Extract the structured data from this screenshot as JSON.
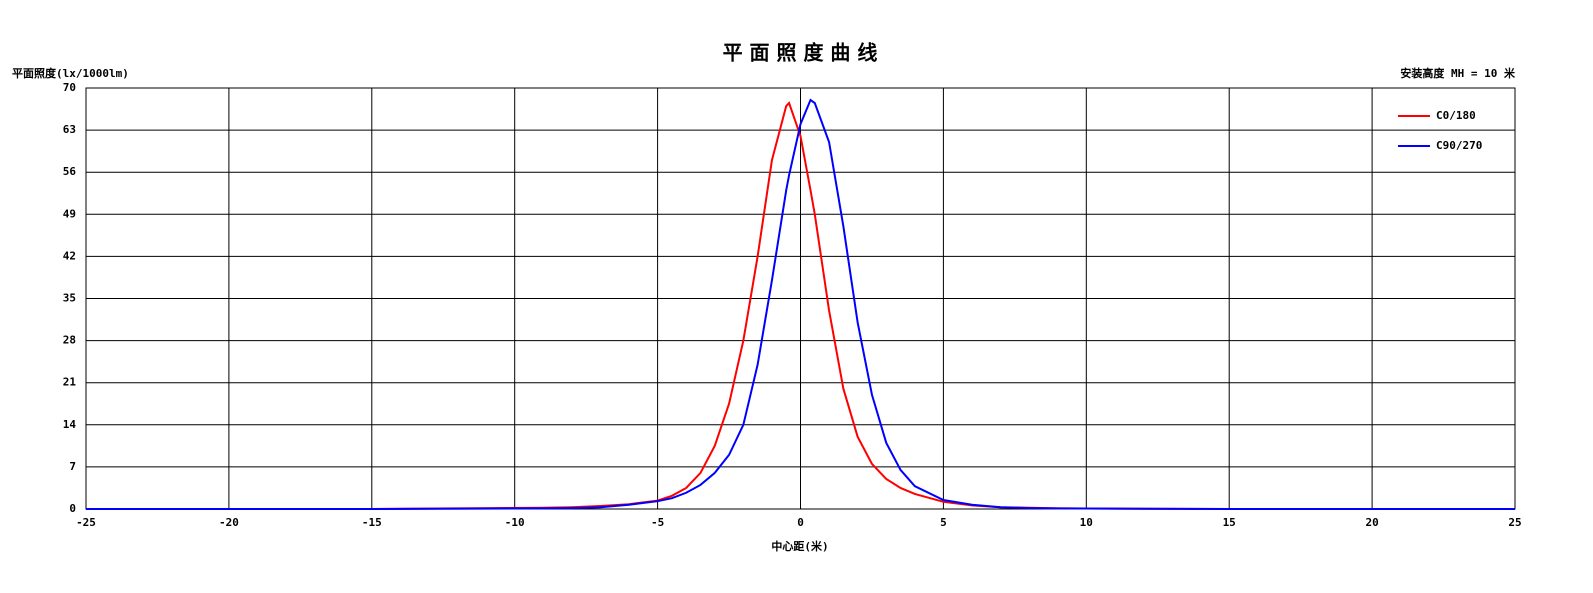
{
  "chart_data": {
    "type": "line",
    "title": "平 面 照 度 曲 线",
    "y_label": "平面照度(lx/1000lm)",
    "annotation": "安装高度 MH = 10 米",
    "x_label": "中心距(米)",
    "x": [
      -25,
      -15,
      -9,
      -8,
      -7,
      -6,
      -5,
      -4.5,
      -4,
      -3.5,
      -3,
      -2.5,
      -2,
      -1.5,
      -1,
      -0.5,
      -0.4,
      0,
      0.35,
      0.5,
      1,
      1.5,
      2,
      2.5,
      3,
      3.5,
      4,
      5,
      6,
      7,
      8,
      9,
      15,
      25
    ],
    "series": [
      {
        "name": "C0/180",
        "color": "#ff0000",
        "values": [
          0,
          0,
          0.2,
          0.3,
          0.5,
          0.8,
          1.4,
          2.2,
          3.5,
          6,
          10.5,
          17.5,
          28,
          42,
          58,
          67,
          67.5,
          62,
          53,
          49,
          33,
          20,
          12,
          7.5,
          5,
          3.5,
          2.5,
          1.2,
          0.6,
          0.3,
          0.2,
          0.1,
          0,
          0
        ]
      },
      {
        "name": "C90/270",
        "color": "#0000ff",
        "values": [
          0,
          0,
          0.1,
          0.15,
          0.3,
          0.7,
          1.3,
          1.8,
          2.7,
          4,
          6,
          9,
          14,
          24,
          38,
          53,
          55.5,
          64,
          68,
          67.5,
          61,
          47,
          31,
          19,
          11,
          6.5,
          3.8,
          1.5,
          0.7,
          0.3,
          0.15,
          0.1,
          0,
          0
        ]
      }
    ],
    "xlim": [
      -25,
      25
    ],
    "ylim": [
      0,
      70
    ],
    "xticks": [
      -25,
      -20,
      -15,
      -10,
      -5,
      0,
      5,
      10,
      15,
      20,
      25
    ],
    "yticks": [
      0,
      7,
      14,
      21,
      28,
      35,
      42,
      49,
      56,
      63,
      70
    ],
    "grid": true,
    "legend": "upper right"
  }
}
